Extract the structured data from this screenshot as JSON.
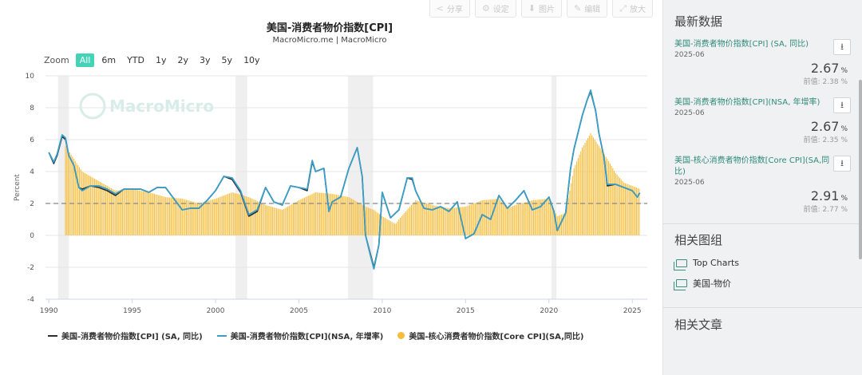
{
  "toolbar": {
    "buttons": [
      {
        "label": "分享",
        "icon": "share-icon",
        "glyph": "<"
      },
      {
        "label": "设定",
        "icon": "gear-icon",
        "glyph": "⚙"
      },
      {
        "label": "图片",
        "icon": "download-icon",
        "glyph": "⬇"
      },
      {
        "label": "编辑",
        "icon": "pencil-icon",
        "glyph": "✎"
      },
      {
        "label": "放大",
        "icon": "expand-icon",
        "glyph": "⤢"
      }
    ]
  },
  "zoom": {
    "label": "Zoom",
    "options": [
      "All",
      "6m",
      "YTD",
      "1y",
      "2y",
      "3y",
      "5y",
      "10y"
    ],
    "active": "All"
  },
  "watermark": "MacroMicro",
  "colors": {
    "sa_line": "#2b2f33",
    "nsa_line": "#3a9ec6",
    "core_bars": "#f6bd3b",
    "recession": "#efefef",
    "accent": "#43d3b6",
    "reference_line": "#888888"
  },
  "chart_data": {
    "type": "line",
    "title": "美国-消费者物价指数[CPI]",
    "subtitle": "MacroMicro.me | MacroMicro",
    "ylabel": "Percent",
    "ylim": [
      -4,
      10
    ],
    "xlim": [
      1989.8,
      2025.9
    ],
    "yticks": [
      -4,
      -2,
      0,
      2,
      4,
      6,
      8,
      10
    ],
    "xticks": [
      1990,
      1995,
      2000,
      2005,
      2010,
      2015,
      2020,
      2025
    ],
    "grid": true,
    "legend_position": "bottom",
    "reference_line": 2,
    "recession_bands": [
      [
        1990.55,
        1991.2
      ],
      [
        2001.2,
        2001.9
      ],
      [
        2007.95,
        2009.45
      ],
      [
        2020.15,
        2020.45
      ]
    ],
    "series": [
      {
        "name": "美国-消费者物价指数[CPI] (SA, 同比)",
        "type": "line",
        "x": [
          1990.0,
          1990.3,
          1990.5,
          1990.8,
          1991.0,
          1991.2,
          1991.5,
          1991.8,
          1992.0,
          1992.5,
          1993.0,
          1993.5,
          1994.0,
          1994.5,
          1995.0,
          1995.5,
          1996.0,
          1996.5,
          1997.0,
          1997.5,
          1998.0,
          1998.5,
          1999.0,
          1999.5,
          2000.0,
          2000.5,
          2001.0,
          2001.5,
          2001.8,
          2002.0,
          2002.5,
          2003.0,
          2003.5,
          2004.0,
          2004.5,
          2005.0,
          2005.5,
          2005.8,
          2006.0,
          2006.5,
          2006.8,
          2007.0,
          2007.5,
          2008.0,
          2008.5,
          2008.8,
          2009.0,
          2009.3,
          2009.5,
          2009.8,
          2010.0,
          2010.5,
          2011.0,
          2011.5,
          2011.8,
          2012.0,
          2012.5,
          2013.0,
          2013.5,
          2014.0,
          2014.5,
          2015.0,
          2015.5,
          2016.0,
          2016.5,
          2017.0,
          2017.5,
          2018.0,
          2018.5,
          2019.0,
          2019.5,
          2020.0,
          2020.3,
          2020.5,
          2021.0,
          2021.3,
          2021.5,
          2022.0,
          2022.3,
          2022.5,
          2022.8,
          2023.0,
          2023.3,
          2023.5,
          2024.0,
          2024.5,
          2025.0,
          2025.3,
          2025.45
        ],
        "values": [
          5.2,
          4.5,
          5.0,
          6.2,
          6.0,
          5.0,
          4.4,
          3.0,
          2.9,
          3.1,
          3.0,
          2.8,
          2.5,
          2.9,
          2.9,
          2.9,
          2.7,
          3.0,
          3.0,
          2.3,
          1.6,
          1.7,
          1.7,
          2.2,
          2.8,
          3.7,
          3.5,
          2.7,
          1.8,
          1.2,
          1.5,
          3.0,
          2.1,
          1.9,
          3.1,
          3.0,
          2.8,
          4.6,
          4.0,
          4.2,
          1.5,
          2.1,
          2.4,
          4.2,
          5.5,
          3.7,
          0.0,
          -1.2,
          -2.0,
          -0.6,
          2.7,
          1.1,
          1.6,
          3.6,
          3.5,
          2.8,
          1.7,
          1.6,
          1.8,
          1.5,
          2.1,
          -0.2,
          0.1,
          1.3,
          1.0,
          2.5,
          1.7,
          2.2,
          2.8,
          1.6,
          1.8,
          2.4,
          1.5,
          0.3,
          1.4,
          4.2,
          5.4,
          7.5,
          8.5,
          9.0,
          7.8,
          6.4,
          4.9,
          3.1,
          3.2,
          3.0,
          2.8,
          2.4,
          2.67
        ]
      },
      {
        "name": "美国-消费者物价指数[CPI](NSA, 年增率)",
        "type": "line",
        "x": [
          1990.0,
          1990.3,
          1990.5,
          1990.8,
          1991.0,
          1991.2,
          1991.5,
          1991.8,
          1992.0,
          1992.5,
          1993.0,
          1993.5,
          1994.0,
          1994.5,
          1995.0,
          1995.5,
          1996.0,
          1996.5,
          1997.0,
          1997.5,
          1998.0,
          1998.5,
          1999.0,
          1999.5,
          2000.0,
          2000.5,
          2001.0,
          2001.5,
          2001.8,
          2002.0,
          2002.5,
          2003.0,
          2003.5,
          2004.0,
          2004.5,
          2005.0,
          2005.5,
          2005.8,
          2006.0,
          2006.5,
          2006.8,
          2007.0,
          2007.5,
          2008.0,
          2008.5,
          2008.8,
          2009.0,
          2009.3,
          2009.5,
          2009.8,
          2010.0,
          2010.5,
          2011.0,
          2011.5,
          2011.8,
          2012.0,
          2012.5,
          2013.0,
          2013.5,
          2014.0,
          2014.5,
          2015.0,
          2015.5,
          2016.0,
          2016.5,
          2017.0,
          2017.5,
          2018.0,
          2018.5,
          2019.0,
          2019.5,
          2020.0,
          2020.3,
          2020.5,
          2021.0,
          2021.3,
          2021.5,
          2022.0,
          2022.3,
          2022.5,
          2022.8,
          2023.0,
          2023.3,
          2023.5,
          2024.0,
          2024.5,
          2025.0,
          2025.3,
          2025.45
        ],
        "values": [
          5.2,
          4.6,
          5.1,
          6.3,
          6.1,
          5.0,
          4.4,
          3.0,
          2.8,
          3.1,
          3.1,
          2.9,
          2.6,
          2.9,
          2.9,
          2.9,
          2.7,
          3.0,
          3.0,
          2.3,
          1.6,
          1.7,
          1.7,
          2.2,
          2.8,
          3.7,
          3.6,
          2.8,
          1.9,
          1.3,
          1.6,
          3.0,
          2.1,
          1.9,
          3.1,
          3.0,
          2.9,
          4.7,
          4.0,
          4.2,
          1.5,
          2.1,
          2.4,
          4.2,
          5.5,
          3.7,
          0.0,
          -1.3,
          -2.1,
          -0.6,
          2.7,
          1.1,
          1.6,
          3.6,
          3.6,
          2.8,
          1.7,
          1.6,
          1.8,
          1.5,
          2.1,
          -0.2,
          0.1,
          1.3,
          1.0,
          2.5,
          1.7,
          2.2,
          2.8,
          1.6,
          1.8,
          2.4,
          1.5,
          0.3,
          1.4,
          4.2,
          5.4,
          7.5,
          8.5,
          9.1,
          7.8,
          6.4,
          4.9,
          3.2,
          3.2,
          3.0,
          2.8,
          2.4,
          2.67
        ]
      },
      {
        "name": "美国-核心消费者物价指数[Core CPI](SA,同比)",
        "type": "bar",
        "x": [
          1991.0,
          1991.5,
          1992.0,
          1993.0,
          1994.0,
          1995.0,
          1996.0,
          1997.0,
          1998.0,
          1999.0,
          2000.0,
          2001.0,
          2002.0,
          2003.0,
          2004.0,
          2005.0,
          2006.0,
          2007.0,
          2008.0,
          2009.0,
          2009.5,
          2010.0,
          2010.8,
          2011.0,
          2012.0,
          2013.0,
          2014.0,
          2015.0,
          2016.0,
          2017.0,
          2017.5,
          2018.0,
          2019.0,
          2020.0,
          2020.5,
          2021.0,
          2021.5,
          2022.0,
          2022.5,
          2023.0,
          2023.5,
          2024.0,
          2024.5,
          2025.0,
          2025.45
        ],
        "values": [
          5.6,
          4.8,
          4.0,
          3.4,
          2.8,
          2.9,
          2.7,
          2.4,
          2.3,
          2.0,
          2.3,
          2.7,
          2.4,
          1.9,
          1.6,
          2.2,
          2.7,
          2.6,
          2.4,
          1.8,
          1.6,
          1.2,
          0.7,
          1.0,
          2.2,
          1.9,
          1.7,
          1.8,
          2.2,
          2.3,
          1.7,
          1.9,
          2.2,
          2.3,
          1.2,
          1.4,
          4.2,
          5.5,
          6.4,
          5.6,
          4.8,
          3.9,
          3.3,
          3.1,
          2.91
        ]
      }
    ]
  },
  "side": {
    "latest_title": "最新数据",
    "stats": [
      {
        "name": "美国-消费者物价指数[CPI] (SA, 同比)",
        "date": "2025-06",
        "value": "2.67",
        "unit": "%",
        "prev_label": "前值:",
        "prev_value": "2.38",
        "prev_unit": "%"
      },
      {
        "name": "美国-消费者物价指数[CPI](NSA, 年增率)",
        "date": "2025-06",
        "value": "2.67",
        "unit": "%",
        "prev_label": "前值:",
        "prev_value": "2.35",
        "prev_unit": "%"
      },
      {
        "name": "美国-核心消费者物价指数[Core CPI](SA,同比)",
        "date": "2025-06",
        "value": "2.91",
        "unit": "%",
        "prev_label": "前值:",
        "prev_value": "2.77",
        "prev_unit": "%"
      }
    ],
    "groups_title": "相关图组",
    "groups": [
      "Top Charts",
      "美国-物价"
    ],
    "articles_title": "相关文章"
  }
}
